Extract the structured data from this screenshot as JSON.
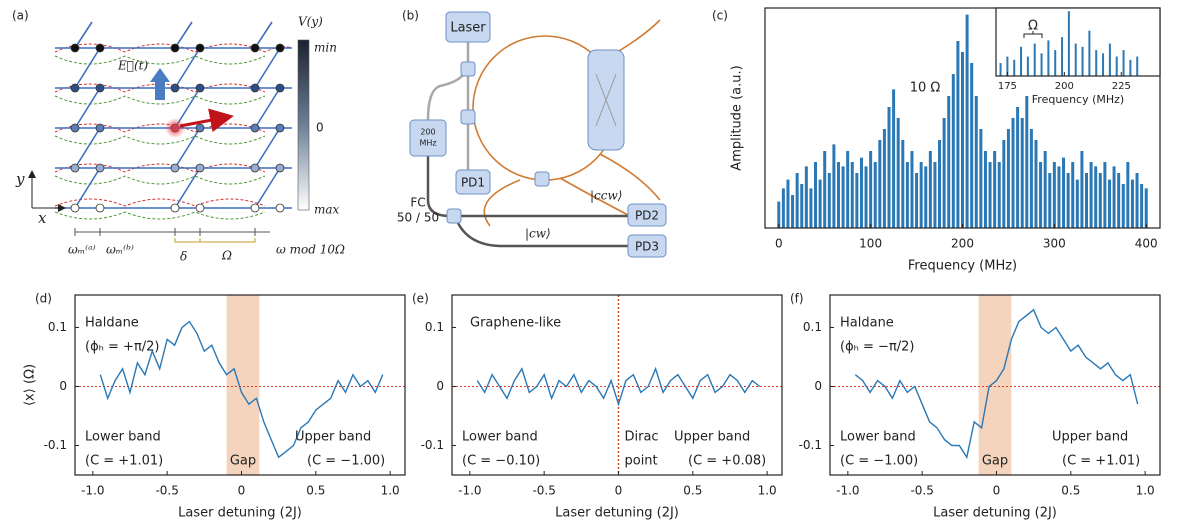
{
  "panels": {
    "a": {
      "label": "(a)",
      "colorbar_title": "V(y)",
      "colorbar_top": "min",
      "colorbar_mid": "0",
      "colorbar_bottom": "max",
      "field": "E⃗(t)",
      "axis_y": "y",
      "axis_x": "x",
      "omega_a": "ωₘ⁽ᵃ⁾",
      "omega_b": "ωₘ⁽ᵇ⁾",
      "delta": "δ",
      "Omega": "Ω",
      "axis_label": "ω mod 10Ω"
    },
    "b": {
      "label": "(b)",
      "laser": "Laser",
      "mod_lines": [
        "200",
        "MHz"
      ],
      "pd1": "PD1",
      "pd2": "PD2",
      "pd3": "PD3",
      "fc_lines": [
        "FC",
        "50 / 50"
      ],
      "ccw": "|ccw⟩",
      "cw": "|cw⟩"
    }
  },
  "chart_data": [
    {
      "type": "stem",
      "panel_label": "(c)",
      "x_label": "Frequency (MHz)",
      "y_label": "Amplitude (a.u.)",
      "color": "#2a78b5",
      "annotations": [
        "10 Ω"
      ],
      "x": [
        0,
        5,
        10,
        15,
        20,
        25,
        30,
        35,
        40,
        45,
        50,
        55,
        60,
        65,
        70,
        75,
        80,
        85,
        90,
        95,
        100,
        105,
        110,
        115,
        120,
        125,
        130,
        135,
        140,
        145,
        150,
        155,
        160,
        165,
        170,
        175,
        180,
        185,
        190,
        195,
        200,
        205,
        210,
        215,
        220,
        225,
        230,
        235,
        240,
        245,
        250,
        255,
        260,
        265,
        270,
        275,
        280,
        285,
        290,
        295,
        300,
        305,
        310,
        315,
        320,
        325,
        330,
        335,
        340,
        345,
        350,
        355,
        360,
        365,
        370,
        375,
        380,
        385,
        390,
        395,
        400
      ],
      "values": [
        0.12,
        0.18,
        0.22,
        0.15,
        0.25,
        0.2,
        0.28,
        0.18,
        0.3,
        0.22,
        0.35,
        0.25,
        0.38,
        0.3,
        0.28,
        0.35,
        0.3,
        0.25,
        0.32,
        0.28,
        0.35,
        0.3,
        0.4,
        0.45,
        0.55,
        0.63,
        0.5,
        0.4,
        0.3,
        0.35,
        0.25,
        0.3,
        0.28,
        0.35,
        0.3,
        0.4,
        0.5,
        0.6,
        0.7,
        0.85,
        0.8,
        0.97,
        0.75,
        0.6,
        0.45,
        0.35,
        0.3,
        0.35,
        0.3,
        0.4,
        0.45,
        0.5,
        0.55,
        0.5,
        0.6,
        0.45,
        0.4,
        0.3,
        0.35,
        0.25,
        0.3,
        0.28,
        0.32,
        0.25,
        0.3,
        0.22,
        0.35,
        0.25,
        0.3,
        0.28,
        0.25,
        0.3,
        0.22,
        0.28,
        0.25,
        0.2,
        0.3,
        0.22,
        0.25,
        0.2,
        0.18
      ],
      "xlim": [
        -15,
        415
      ],
      "ylim": [
        0,
        1
      ],
      "xticks": [
        0,
        100,
        200,
        300,
        400
      ]
    },
    {
      "type": "stem",
      "x_label": "Frequency (MHz)",
      "color": "#2a78b5",
      "annotations": [
        "Ω"
      ],
      "x": [
        172,
        175,
        178,
        181,
        184,
        187,
        190,
        193,
        196,
        199,
        202,
        205,
        208,
        211,
        214,
        217,
        220,
        223,
        226,
        229,
        232
      ],
      "values": [
        0.2,
        0.3,
        0.25,
        0.45,
        0.3,
        0.5,
        0.35,
        0.55,
        0.4,
        0.6,
        1.0,
        0.5,
        0.45,
        0.7,
        0.4,
        0.35,
        0.5,
        0.3,
        0.4,
        0.25,
        0.3
      ],
      "xlim": [
        170,
        242
      ],
      "ylim": [
        0,
        1.05
      ],
      "xticks": [
        175,
        200,
        225
      ]
    },
    {
      "type": "line",
      "panel_label": "(d)",
      "x_label": "Laser detuning (2J)",
      "y_label": "⟨x⟩ (Ω)",
      "color": "#2a78b5",
      "annotations": [
        "Haldane",
        "(ϕₕ = +π/2)",
        "Lower band",
        "(C = +1.01)",
        "Gap",
        "Upper band",
        "(C = −1.00)"
      ],
      "shade": [
        -0.1,
        0.12
      ],
      "hline": 0,
      "x": [
        -0.95,
        -0.9,
        -0.85,
        -0.8,
        -0.75,
        -0.7,
        -0.65,
        -0.6,
        -0.55,
        -0.5,
        -0.45,
        -0.4,
        -0.35,
        -0.3,
        -0.25,
        -0.2,
        -0.15,
        -0.1,
        -0.05,
        0,
        0.05,
        0.1,
        0.15,
        0.2,
        0.25,
        0.3,
        0.35,
        0.4,
        0.45,
        0.5,
        0.55,
        0.6,
        0.65,
        0.7,
        0.75,
        0.8,
        0.85,
        0.9,
        0.95
      ],
      "values": [
        0.02,
        -0.02,
        0.01,
        0.03,
        -0.01,
        0.04,
        0.02,
        0.06,
        0.03,
        0.08,
        0.07,
        0.1,
        0.11,
        0.09,
        0.06,
        0.07,
        0.04,
        0.02,
        0.03,
        -0.01,
        -0.03,
        -0.02,
        -0.06,
        -0.09,
        -0.12,
        -0.11,
        -0.1,
        -0.07,
        -0.06,
        -0.04,
        -0.03,
        -0.02,
        0.01,
        -0.01,
        0.02,
        0,
        0.01,
        -0.01,
        0.02
      ],
      "xlim": [
        -1.12,
        1.1
      ],
      "ylim": [
        -0.15,
        0.155
      ],
      "xticks": [
        {
          "value": -1,
          "label": "-1.0"
        },
        -0.5,
        0,
        0.5,
        {
          "value": 1,
          "label": "1.0"
        }
      ],
      "yticks": [
        0.1,
        0,
        -0.1
      ]
    },
    {
      "type": "line",
      "panel_label": "(e)",
      "x_label": "Laser detuning (2J)",
      "color": "#2a78b5",
      "annotations": [
        "Graphene-like",
        "Lower band",
        "(C = −0.10)",
        "Dirac",
        "point",
        "Upper band",
        "(C = +0.08)"
      ],
      "vline": 0,
      "hline": 0,
      "x": [
        -0.95,
        -0.9,
        -0.85,
        -0.8,
        -0.75,
        -0.7,
        -0.65,
        -0.6,
        -0.55,
        -0.5,
        -0.45,
        -0.4,
        -0.35,
        -0.3,
        -0.25,
        -0.2,
        -0.15,
        -0.1,
        -0.05,
        0,
        0.05,
        0.1,
        0.15,
        0.2,
        0.25,
        0.3,
        0.35,
        0.4,
        0.45,
        0.5,
        0.55,
        0.6,
        0.65,
        0.7,
        0.75,
        0.8,
        0.85,
        0.9,
        0.95
      ],
      "values": [
        0.01,
        -0.01,
        0.02,
        0,
        -0.02,
        0.01,
        0.03,
        -0.01,
        0,
        0.02,
        -0.02,
        0.01,
        0,
        0.02,
        -0.01,
        0.01,
        0,
        -0.02,
        0.01,
        -0.03,
        0.01,
        0.02,
        -0.01,
        0,
        0.03,
        -0.01,
        0.01,
        0.02,
        0,
        -0.02,
        0.01,
        0.02,
        -0.01,
        0,
        0.02,
        0.01,
        -0.01,
        0.01,
        0
      ],
      "xlim": [
        -1.12,
        1.1
      ],
      "ylim": [
        -0.15,
        0.155
      ],
      "xticks": [
        {
          "value": -1,
          "label": "-1.0"
        },
        -0.5,
        0,
        0.5,
        {
          "value": 1,
          "label": "1.0"
        }
      ],
      "yticks": [
        0.1,
        0,
        -0.1
      ]
    },
    {
      "type": "line",
      "panel_label": "(f)",
      "x_label": "Laser detuning (2J)",
      "color": "#2a78b5",
      "annotations": [
        "Haldane",
        "(ϕₕ = −π/2)",
        "Lower band",
        "(C = −1.00)",
        "Gap",
        "Upper band",
        "(C = +1.01)"
      ],
      "shade": [
        -0.12,
        0.1
      ],
      "hline": 0,
      "x": [
        -0.95,
        -0.9,
        -0.85,
        -0.8,
        -0.75,
        -0.7,
        -0.65,
        -0.6,
        -0.55,
        -0.5,
        -0.45,
        -0.4,
        -0.35,
        -0.3,
        -0.25,
        -0.2,
        -0.15,
        -0.1,
        -0.05,
        0,
        0.05,
        0.1,
        0.15,
        0.2,
        0.25,
        0.3,
        0.35,
        0.4,
        0.45,
        0.5,
        0.55,
        0.6,
        0.65,
        0.7,
        0.75,
        0.8,
        0.85,
        0.9,
        0.95
      ],
      "values": [
        0.02,
        0.01,
        -0.01,
        0.01,
        0,
        -0.02,
        0.01,
        -0.01,
        0,
        -0.03,
        -0.06,
        -0.07,
        -0.09,
        -0.1,
        -0.1,
        -0.12,
        -0.06,
        -0.07,
        0,
        0.01,
        0.03,
        0.08,
        0.11,
        0.12,
        0.13,
        0.1,
        0.09,
        0.1,
        0.08,
        0.06,
        0.07,
        0.05,
        0.04,
        0.03,
        0.04,
        0.02,
        0.01,
        0.02,
        -0.03
      ],
      "xlim": [
        -1.12,
        1.1
      ],
      "ylim": [
        -0.15,
        0.155
      ],
      "xticks": [
        {
          "value": -1,
          "label": "-1.0"
        },
        -0.5,
        0,
        0.5,
        {
          "value": 1,
          "label": "1.0"
        }
      ],
      "yticks": [
        0.1,
        0,
        -0.1
      ]
    }
  ]
}
